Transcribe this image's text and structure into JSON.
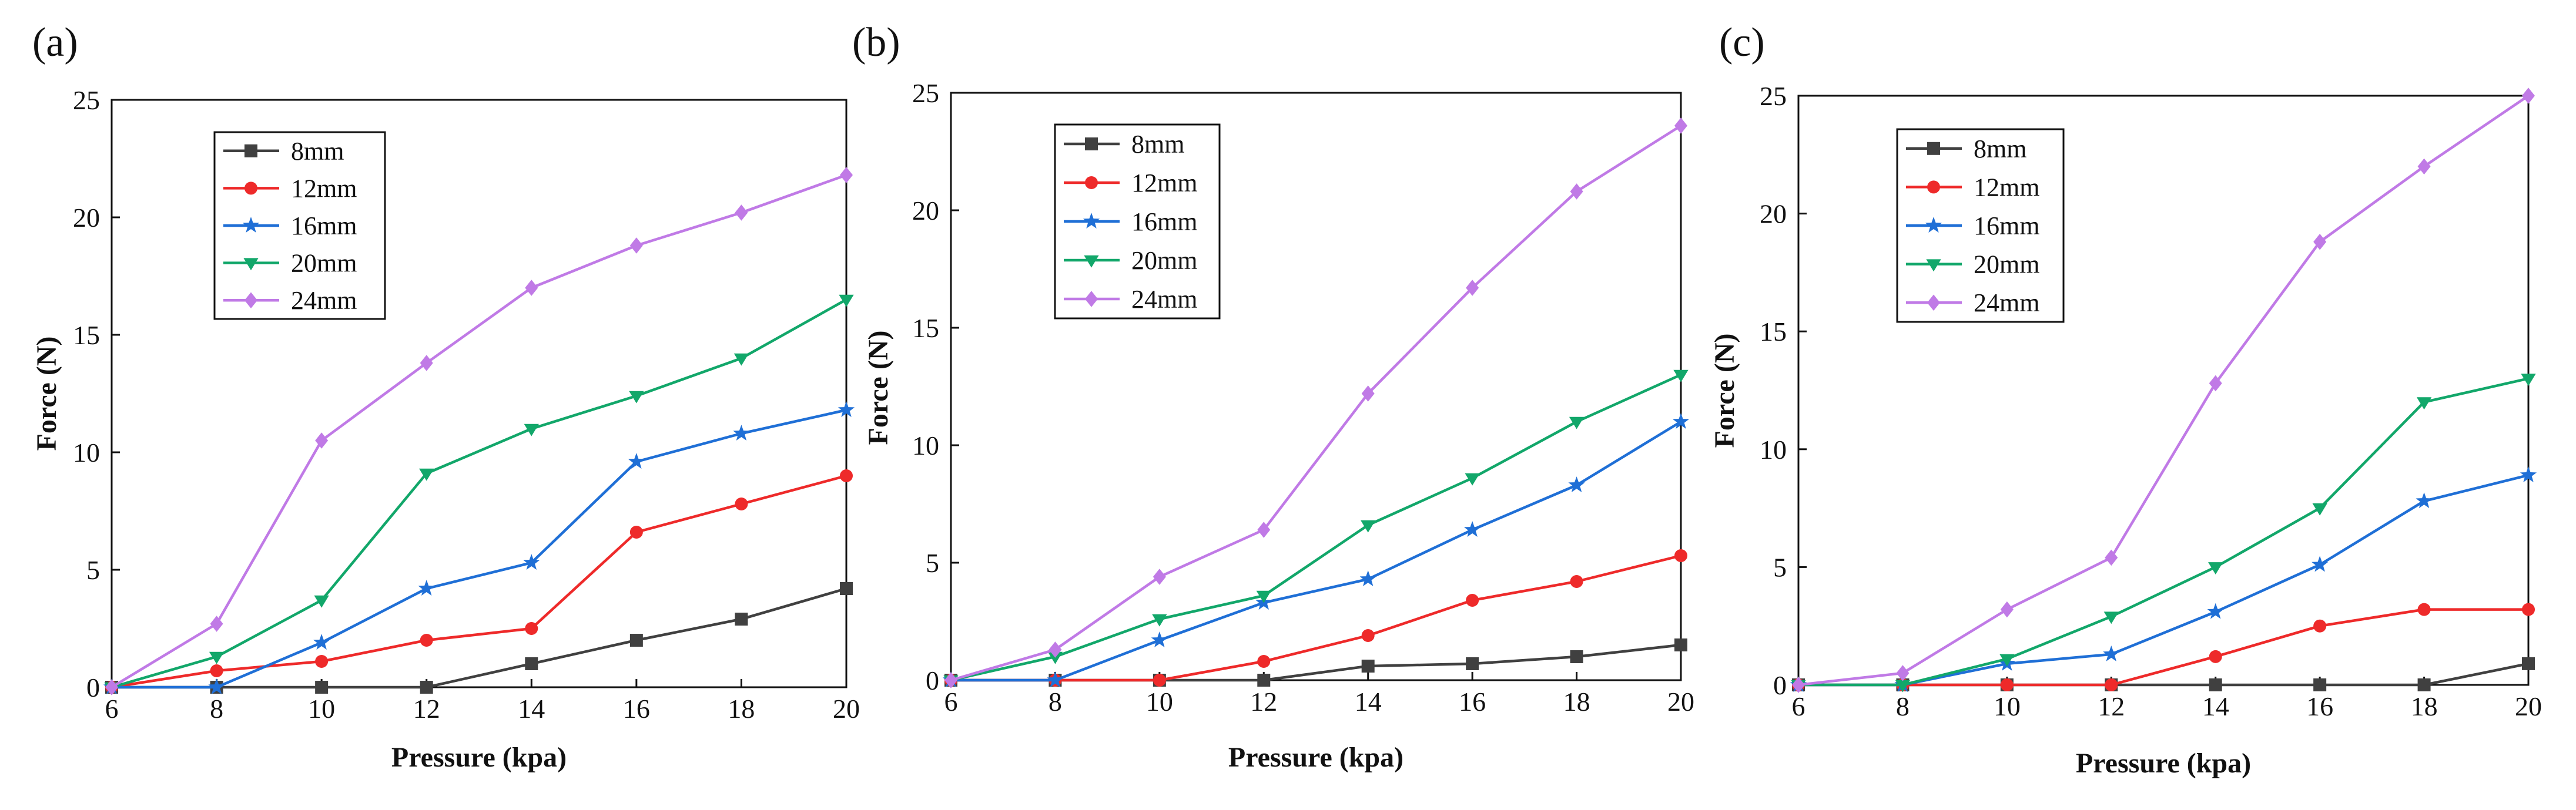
{
  "chart_data": [
    {
      "type": "line",
      "panel": "(a)",
      "xlabel": "Pressure (kpa)",
      "ylabel": "Force (N)",
      "xlim": [
        6,
        20
      ],
      "ylim": [
        0,
        25
      ],
      "xticks": [
        "6",
        "8",
        "10",
        "12",
        "14",
        "16",
        "18",
        "20"
      ],
      "yticks": [
        "0",
        "5",
        "10",
        "15",
        "20",
        "25"
      ],
      "x": [
        6,
        8,
        10,
        12,
        14,
        16,
        18,
        20
      ],
      "legend_position": "top-left",
      "series": [
        {
          "name": "8mm",
          "color": "#404040",
          "marker": "square",
          "values": [
            0,
            0,
            0,
            0,
            1.0,
            2.0,
            2.9,
            4.2
          ]
        },
        {
          "name": "12mm",
          "color": "#ee2a2a",
          "marker": "circle",
          "values": [
            0,
            0.7,
            1.1,
            2.0,
            2.5,
            6.6,
            7.8,
            9.0
          ]
        },
        {
          "name": "16mm",
          "color": "#1f6fd6",
          "marker": "star",
          "values": [
            0,
            0,
            1.9,
            4.2,
            5.3,
            9.6,
            10.8,
            11.8
          ]
        },
        {
          "name": "20mm",
          "color": "#12a76a",
          "marker": "triangle-down",
          "values": [
            0,
            1.3,
            3.7,
            9.1,
            11.0,
            12.4,
            14.0,
            16.5
          ]
        },
        {
          "name": "24mm",
          "color": "#c07ae6",
          "marker": "diamond",
          "values": [
            0,
            2.7,
            10.5,
            13.8,
            17.0,
            18.8,
            20.2,
            21.8
          ]
        }
      ]
    },
    {
      "type": "line",
      "panel": "(b)",
      "xlabel": "Pressure (kpa)",
      "ylabel": "Force (N)",
      "xlim": [
        6,
        20
      ],
      "ylim": [
        0,
        25
      ],
      "xticks": [
        "6",
        "8",
        "10",
        "12",
        "14",
        "16",
        "18",
        "20"
      ],
      "yticks": [
        "0",
        "5",
        "10",
        "15",
        "20",
        "25"
      ],
      "x": [
        6,
        8,
        10,
        12,
        14,
        16,
        18,
        20
      ],
      "legend_position": "top-left",
      "series": [
        {
          "name": "8mm",
          "color": "#404040",
          "marker": "square",
          "values": [
            0,
            0,
            0,
            0,
            0.6,
            0.7,
            1.0,
            1.5
          ]
        },
        {
          "name": "12mm",
          "color": "#ee2a2a",
          "marker": "circle",
          "values": [
            0,
            0,
            0,
            0.8,
            1.9,
            3.4,
            4.2,
            5.3
          ]
        },
        {
          "name": "16mm",
          "color": "#1f6fd6",
          "marker": "star",
          "values": [
            0,
            0,
            1.7,
            3.3,
            4.3,
            6.4,
            8.3,
            11.0
          ]
        },
        {
          "name": "20mm",
          "color": "#12a76a",
          "marker": "triangle-down",
          "values": [
            0,
            1.0,
            2.6,
            3.6,
            6.6,
            8.6,
            11.0,
            13.0
          ]
        },
        {
          "name": "24mm",
          "color": "#c07ae6",
          "marker": "diamond",
          "values": [
            0,
            1.3,
            4.4,
            6.4,
            12.2,
            16.7,
            20.8,
            23.6
          ]
        }
      ]
    },
    {
      "type": "line",
      "panel": "(c)",
      "xlabel": "Pressure (kpa)",
      "ylabel": "Force (N)",
      "xlim": [
        6,
        20
      ],
      "ylim": [
        0,
        25
      ],
      "xticks": [
        "6",
        "8",
        "10",
        "12",
        "14",
        "16",
        "18",
        "20"
      ],
      "yticks": [
        "0",
        "5",
        "10",
        "15",
        "20",
        "25"
      ],
      "x": [
        6,
        8,
        10,
        12,
        14,
        16,
        18,
        20
      ],
      "legend_position": "top-left",
      "series": [
        {
          "name": "8mm",
          "color": "#404040",
          "marker": "square",
          "values": [
            0,
            0,
            0,
            0,
            0,
            0,
            0,
            0.9
          ]
        },
        {
          "name": "12mm",
          "color": "#ee2a2a",
          "marker": "circle",
          "values": [
            0,
            0,
            0,
            0,
            1.2,
            2.5,
            3.2,
            3.2
          ]
        },
        {
          "name": "16mm",
          "color": "#1f6fd6",
          "marker": "star",
          "values": [
            0,
            0,
            0.9,
            1.3,
            3.1,
            5.1,
            7.8,
            8.9
          ]
        },
        {
          "name": "20mm",
          "color": "#12a76a",
          "marker": "triangle-down",
          "values": [
            0,
            0,
            1.1,
            2.9,
            5.0,
            7.5,
            12.0,
            13.0
          ]
        },
        {
          "name": "24mm",
          "color": "#c07ae6",
          "marker": "diamond",
          "values": [
            0,
            0.5,
            3.2,
            5.4,
            12.8,
            18.8,
            22.0,
            25.0
          ]
        }
      ]
    }
  ]
}
